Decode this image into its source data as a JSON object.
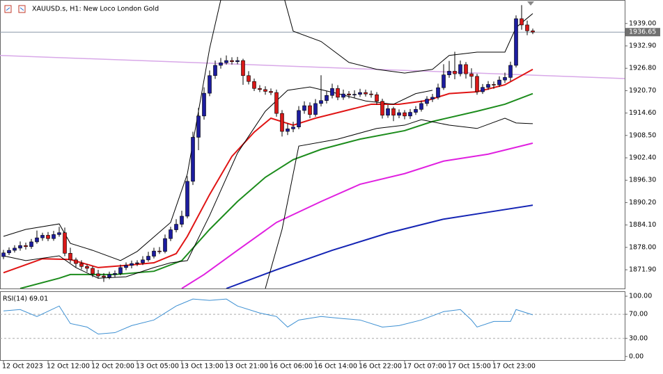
{
  "chart_data": {
    "type": "candlestick",
    "title": "XAUUSD.s, H1: New Loco London Gold",
    "categories": [
      "12 Oct 2023",
      null,
      null,
      null,
      null,
      null,
      null,
      null,
      "12 Oct 12:00",
      null,
      null,
      null,
      null,
      null,
      null,
      null,
      "12 Oct 20:00",
      null,
      null,
      null,
      null,
      null,
      null,
      null,
      "13 Oct 05:00",
      null,
      null,
      null,
      null,
      null,
      null,
      null,
      "13 Oct 13:00",
      null,
      null,
      null,
      null,
      null,
      null,
      null,
      "13 Oct 21:00",
      null,
      null,
      null,
      null,
      null,
      null,
      null,
      "16 Oct 06:00",
      null,
      null,
      null,
      null,
      null,
      null,
      null,
      "16 Oct 14:00",
      null,
      null,
      null,
      null,
      null,
      null,
      null,
      "16 Oct 22:00",
      null,
      null,
      null,
      null,
      null,
      null,
      null,
      "17 Oct 07:00",
      null,
      null,
      null,
      null,
      null,
      null,
      null,
      "17 Oct 15:00",
      null,
      null,
      null,
      null,
      null,
      null,
      null,
      "17 Oct 23:00",
      null,
      null,
      null,
      null,
      null,
      null,
      null
    ],
    "open": [
      1875.5,
      1876.5,
      1877.2,
      1877.8,
      1878.5,
      1878.2,
      1879.5,
      1880.6,
      1881.3,
      1880.4,
      1881.5,
      1882.0,
      1876.4,
      1874.6,
      1873.6,
      1872.8,
      1872.3,
      1870.8,
      1870.2,
      1869.9,
      1870.6,
      1870.9,
      1872.5,
      1873.1,
      1873.6,
      1873.8,
      1874.6,
      1875.6,
      1877.0,
      1876.9,
      1880.4,
      1882.8,
      1884.3,
      1886.5,
      1896.0,
      1908.0,
      1913.8,
      1920.0,
      1924.8,
      1927.6,
      1928.3,
      1928.9,
      1928.6,
      1928.9,
      1924.8,
      1923.2,
      1921.3,
      1921.0,
      1920.5,
      1920.2,
      1914.5,
      1909.6,
      1910.3,
      1910.8,
      1915.3,
      1916.6,
      1914.2,
      1917.2,
      1918.0,
      1919.4,
      1921.3,
      1918.9,
      1919.8,
      1919.5,
      1919.7,
      1920.2,
      1919.8,
      1919.6,
      1917.8,
      1914.0,
      1915.8,
      1914.0,
      1914.7,
      1913.8,
      1914.8,
      1915.6,
      1917.2,
      1918.4,
      1918.9,
      1921.5,
      1925.0,
      1926.0,
      1925.3,
      1927.8,
      1925.3,
      1924.6,
      1920.4,
      1921.6,
      1922.4,
      1922.3,
      1923.6,
      1924.3,
      1927.6,
      1940.3,
      1938.6,
      1937.0
    ],
    "high": [
      1877.3,
      1878.0,
      1878.6,
      1879.6,
      1879.3,
      1880.3,
      1882.6,
      1882.0,
      1882.2,
      1882.5,
      1883.6,
      1883.4,
      1877.9,
      1875.2,
      1874.5,
      1873.4,
      1872.9,
      1871.9,
      1871.0,
      1871.4,
      1871.7,
      1873.3,
      1873.9,
      1874.4,
      1874.5,
      1875.6,
      1876.8,
      1877.9,
      1878.1,
      1881.5,
      1883.6,
      1885.7,
      1888.0,
      1897.4,
      1909.5,
      1916.0,
      1921.6,
      1926.2,
      1928.9,
      1929.6,
      1930.3,
      1929.8,
      1929.9,
      1929.4,
      1926.0,
      1924.0,
      1922.2,
      1921.9,
      1921.3,
      1921.0,
      1915.4,
      1911.8,
      1912.2,
      1916.5,
      1917.8,
      1917.5,
      1918.4,
      1924.9,
      1920.6,
      1922.6,
      1922.2,
      1921.0,
      1920.6,
      1920.8,
      1921.2,
      1921.0,
      1920.7,
      1920.3,
      1918.5,
      1916.8,
      1916.3,
      1915.6,
      1915.4,
      1915.7,
      1916.5,
      1918.0,
      1919.2,
      1919.8,
      1922.6,
      1927.9,
      1928.8,
      1931.3,
      1928.9,
      1928.5,
      1926.8,
      1925.3,
      1922.5,
      1923.3,
      1923.2,
      1924.6,
      1925.6,
      1928.6,
      1941.2,
      1944.0,
      1939.8,
      1937.6
    ],
    "low": [
      1874.8,
      1875.9,
      1876.6,
      1877.1,
      1877.4,
      1877.6,
      1879.0,
      1879.8,
      1879.7,
      1879.8,
      1880.9,
      1875.6,
      1873.8,
      1872.6,
      1872.0,
      1871.3,
      1869.9,
      1869.5,
      1868.6,
      1869.3,
      1869.9,
      1870.4,
      1871.8,
      1872.3,
      1872.9,
      1873.2,
      1874.1,
      1875.0,
      1876.2,
      1876.4,
      1879.7,
      1882.1,
      1883.5,
      1885.9,
      1895.0,
      1904.5,
      1912.8,
      1919.2,
      1923.9,
      1926.7,
      1927.8,
      1927.8,
      1927.9,
      1922.3,
      1922.4,
      1920.6,
      1920.3,
      1919.6,
      1919.5,
      1913.6,
      1908.2,
      1908.6,
      1909.4,
      1910.2,
      1914.4,
      1913.2,
      1913.6,
      1916.4,
      1917.2,
      1918.6,
      1918.1,
      1918.2,
      1918.6,
      1918.8,
      1919.0,
      1919.1,
      1918.8,
      1916.9,
      1913.1,
      1913.3,
      1912.4,
      1913.2,
      1912.9,
      1913.0,
      1914.1,
      1915.0,
      1916.5,
      1917.6,
      1918.3,
      1920.9,
      1924.2,
      1923.8,
      1924.6,
      1924.0,
      1921.4,
      1919.6,
      1919.8,
      1920.9,
      1921.2,
      1921.7,
      1922.8,
      1923.3,
      1927.0,
      1937.3,
      1935.8,
      1936.1
    ],
    "close": [
      1876.5,
      1877.2,
      1877.8,
      1878.5,
      1878.2,
      1879.5,
      1880.6,
      1881.3,
      1880.4,
      1881.5,
      1882.0,
      1876.4,
      1874.6,
      1873.6,
      1872.8,
      1872.3,
      1870.8,
      1870.2,
      1869.9,
      1870.6,
      1870.9,
      1872.5,
      1873.1,
      1873.6,
      1873.8,
      1874.6,
      1875.6,
      1877.0,
      1876.9,
      1880.4,
      1882.8,
      1884.3,
      1886.5,
      1896.0,
      1908.0,
      1913.8,
      1920.0,
      1924.8,
      1927.6,
      1928.3,
      1928.9,
      1928.6,
      1928.9,
      1924.8,
      1923.2,
      1921.3,
      1921.0,
      1920.5,
      1920.2,
      1914.5,
      1909.6,
      1910.3,
      1910.8,
      1915.3,
      1916.6,
      1914.2,
      1917.2,
      1918.0,
      1919.4,
      1921.3,
      1918.9,
      1919.8,
      1919.5,
      1919.7,
      1920.2,
      1919.8,
      1919.6,
      1917.8,
      1914.0,
      1915.8,
      1914.0,
      1914.7,
      1913.8,
      1914.8,
      1915.6,
      1917.2,
      1918.4,
      1918.9,
      1921.5,
      1925.0,
      1926.0,
      1925.3,
      1927.8,
      1925.3,
      1924.6,
      1920.4,
      1921.6,
      1922.4,
      1922.3,
      1923.6,
      1924.3,
      1927.6,
      1940.3,
      1938.6,
      1937.0,
      1936.65
    ],
    "up_color": "#1c1c9e",
    "down_color": "#d81818",
    "ylim": [
      1866.8,
      1945.4
    ],
    "yticks": [
      {
        "value": 1939,
        "label": "1939.00"
      },
      {
        "value": 1932.9,
        "label": "1932.90"
      },
      {
        "value": 1926.8,
        "label": "1926.80"
      },
      {
        "value": 1920.7,
        "label": "1920.70"
      },
      {
        "value": 1914.6,
        "label": "1914.60"
      },
      {
        "value": 1908.5,
        "label": "1908.50"
      },
      {
        "value": 1902.4,
        "label": "1902.40"
      },
      {
        "value": 1896.3,
        "label": "1896.30"
      },
      {
        "value": 1890.2,
        "label": "1890.20"
      },
      {
        "value": 1884.1,
        "label": "1884.10"
      },
      {
        "value": 1878,
        "label": "1878.00"
      },
      {
        "value": 1871.9,
        "label": "1871.90"
      }
    ],
    "current_price": 1936.65,
    "trendline": {
      "color": "#d8a8e8",
      "values": [
        1930.3,
        1924.0
      ]
    },
    "indicators": [
      {
        "color": "#e01414",
        "width": 2,
        "x": [
          0,
          7,
          12,
          17,
          22,
          27,
          31,
          33,
          37,
          41,
          45,
          48,
          52,
          56,
          61,
          66,
          71,
          76,
          80,
          85,
          90,
          95
        ],
        "values": [
          1871.1,
          1874.9,
          1874.7,
          1872.5,
          1873.1,
          1873.8,
          1876.3,
          1881.0,
          1892.4,
          1902.8,
          1909.4,
          1913.2,
          1911.3,
          1913.2,
          1915.1,
          1917.0,
          1917.0,
          1918.0,
          1919.9,
          1920.4,
          1922.3,
          1926.5
        ]
      },
      {
        "color": "#1c8c1c",
        "width": 2,
        "x": [
          3,
          10,
          12,
          20,
          27,
          32,
          37,
          42,
          47,
          52,
          57,
          64,
          72,
          77,
          85,
          90,
          95
        ],
        "values": [
          1866.8,
          1869.6,
          1870.6,
          1870.6,
          1871.5,
          1874.4,
          1882.9,
          1890.5,
          1897.1,
          1901.9,
          1904.7,
          1907.5,
          1909.8,
          1912.3,
          1915.1,
          1917.0,
          1919.9
        ]
      },
      {
        "color": "#e020e0",
        "width": 2,
        "x": [
          32,
          36,
          42,
          49,
          57,
          64,
          72,
          79,
          87,
          95
        ],
        "values": [
          1866.8,
          1870.6,
          1877.2,
          1884.8,
          1890.5,
          1895.2,
          1898.1,
          1901.5,
          1903.4,
          1906.4
        ]
      },
      {
        "color": "#1424b4",
        "width": 2,
        "x": [
          40,
          49,
          59,
          69,
          79,
          87,
          95
        ],
        "values": [
          1866.8,
          1871.9,
          1877.2,
          1881.9,
          1885.7,
          1887.6,
          1889.5
        ]
      },
      {
        "color": "#000000",
        "width": 1,
        "x": [
          0,
          4,
          10,
          12,
          16,
          21,
          24,
          30,
          33,
          37,
          39,
          44,
          50,
          52,
          57,
          62,
          67,
          72,
          77,
          80,
          85,
          90,
          92,
          95
        ],
        "values": [
          1881.0,
          1882.9,
          1884.4,
          1879.1,
          1877.2,
          1874.4,
          1876.9,
          1884.8,
          1898.0,
          1932.2,
          1945.4,
          1952.7,
          1948.0,
          1936.9,
          1934.1,
          1928.4,
          1926.5,
          1925.5,
          1926.5,
          1930.3,
          1931.2,
          1931.2,
          1937.9,
          1941.7
        ]
      },
      {
        "color": "#000000",
        "width": 1,
        "x": [
          0,
          4,
          10,
          13,
          17,
          22,
          27,
          30,
          33,
          37,
          42,
          47,
          51,
          55,
          60,
          65,
          70,
          74,
          77
        ],
        "values": [
          1875.7,
          1874.4,
          1875.7,
          1872.5,
          1869.6,
          1870.0,
          1872.5,
          1873.8,
          1874.4,
          1886.7,
          1903.7,
          1915.1,
          1920.8,
          1921.7,
          1919.9,
          1917.9,
          1917.0,
          1919.9,
          1920.8
        ]
      },
      {
        "color": "#000000",
        "width": 1,
        "x": [
          47,
          50,
          53,
          60,
          67,
          72,
          75,
          80,
          85,
          90,
          92,
          95
        ],
        "values": [
          1866.8,
          1882.9,
          1905.6,
          1907.5,
          1910.4,
          1911.3,
          1912.8,
          1911.3,
          1910.4,
          1913.2,
          1911.9,
          1911.7
        ]
      }
    ],
    "rsi": {
      "label": "RSI(14) 69.01",
      "color": "#3c8fd2",
      "x": [
        0,
        3,
        6,
        10,
        12,
        15,
        17,
        20,
        23,
        27,
        31,
        34,
        37,
        40,
        42,
        46,
        49,
        51,
        53,
        57,
        61,
        64,
        68,
        71,
        75,
        79,
        82,
        84,
        85,
        88,
        91,
        92,
        95
      ],
      "values": [
        75.6,
        77.9,
        66.3,
        83.7,
        54.7,
        48.8,
        37.2,
        39.5,
        51.2,
        60.5,
        83.7,
        95.3,
        93.0,
        95.3,
        83.7,
        72.1,
        66.3,
        48.8,
        60.5,
        66.3,
        62.8,
        60.5,
        48.8,
        51.2,
        60.5,
        74.4,
        77.9,
        60.5,
        48.8,
        58.1,
        58.1,
        77.9,
        69.01
      ],
      "ylim": [
        -6,
        107
      ],
      "yticks": [
        {
          "value": 100,
          "label": "100.00"
        },
        {
          "value": 70,
          "label": "70.00"
        },
        {
          "value": 30,
          "label": "30.00"
        },
        {
          "value": 0,
          "label": "0.00"
        }
      ],
      "levels": [
        70,
        30
      ]
    }
  }
}
